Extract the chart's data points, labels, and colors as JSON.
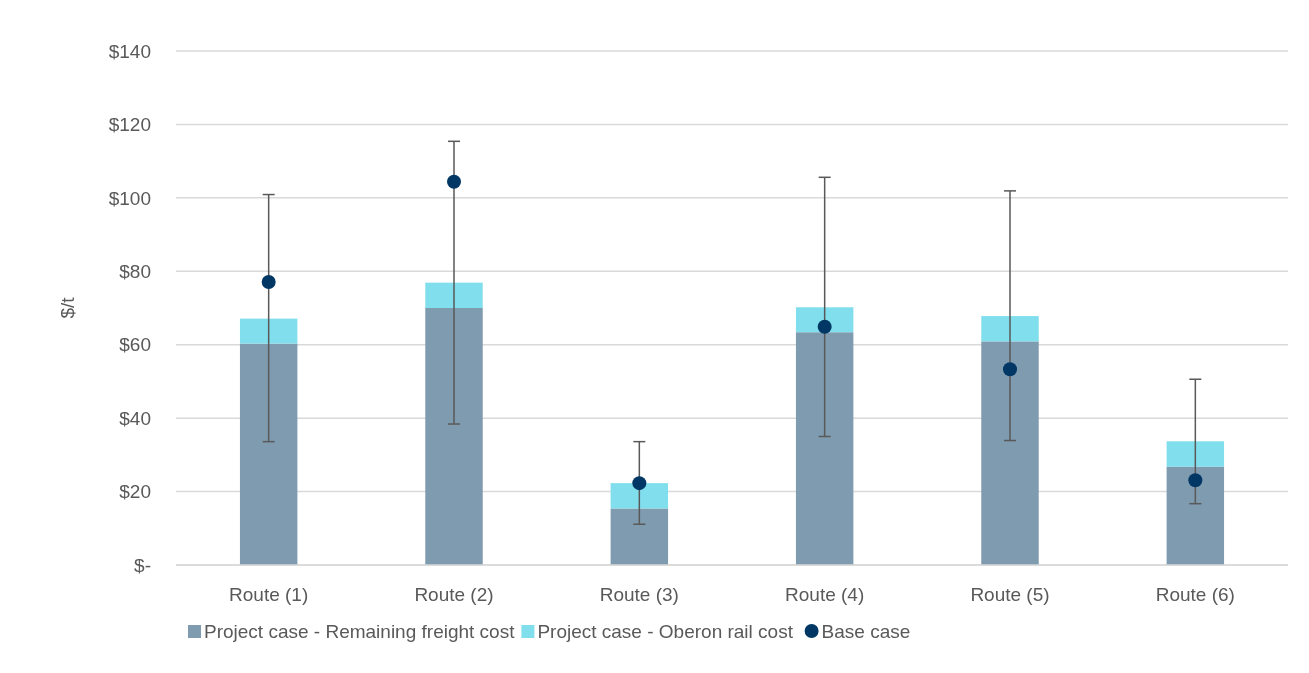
{
  "chart_data": {
    "type": "bar",
    "stacked": true,
    "ylabel": "$/t",
    "categories": [
      "Route (1)",
      "Route (2)",
      "Route (3)",
      "Route (4)",
      "Route (5)",
      "Route (6)"
    ],
    "series": [
      {
        "name": "Project case - Remaining freight cost",
        "color": "#7f9bb0",
        "values": [
          60.3,
          70.0,
          15.4,
          63.4,
          60.9,
          26.8
        ]
      },
      {
        "name": "Project case - Oberon rail cost",
        "color": "#80deed",
        "values": [
          6.8,
          6.9,
          6.9,
          6.8,
          6.9,
          6.9
        ]
      },
      {
        "name": "Base case",
        "type": "scatter",
        "color": "#003764",
        "x": [
          "Route (1)",
          "Route (2)",
          "Route (3)",
          "Route (4)",
          "Route (5)",
          "Route (6)"
        ],
        "values": [
          77.1,
          104.4,
          22.3,
          64.9,
          53.3,
          23.1
        ],
        "errors": [
          [
            33.6,
            100.9
          ],
          [
            38.4,
            115.4
          ],
          [
            11.1,
            33.6
          ],
          [
            35.0,
            105.6
          ],
          [
            33.9,
            101.9
          ],
          [
            16.7,
            50.6
          ]
        ]
      }
    ],
    "ylim": [
      0,
      140
    ],
    "yticks": [
      {
        "value": 0,
        "label": "$-"
      },
      {
        "value": 20,
        "label": "$20"
      },
      {
        "value": 40,
        "label": "$40"
      },
      {
        "value": 60,
        "label": "$60"
      },
      {
        "value": 80,
        "label": "$80"
      },
      {
        "value": 100,
        "label": "$100"
      },
      {
        "value": 120,
        "label": "$120"
      },
      {
        "value": 140,
        "label": "$140"
      }
    ],
    "grid": "y",
    "legend": "bottom",
    "marker": "circle"
  }
}
